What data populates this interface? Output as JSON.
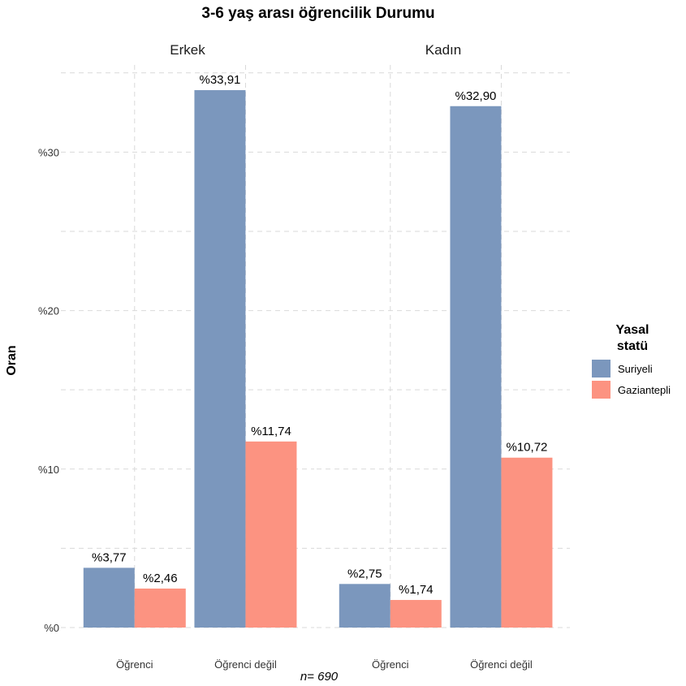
{
  "chart_data": {
    "type": "bar",
    "title": "3-6 yaş arası öğrencilik Durumu",
    "ylabel": "Oran",
    "xlabel": "",
    "ylim": [
      0,
      35.5
    ],
    "yticks": [
      0,
      10,
      20,
      30
    ],
    "ytick_labels": [
      "%0",
      "%10",
      "%20",
      "%30"
    ],
    "grid": true,
    "legend_position": "right",
    "legend_title": [
      "Yasal",
      "statü"
    ],
    "categories": [
      "Öğrenci",
      "Öğrenci değil"
    ],
    "series": [
      {
        "name": "Suriyeli",
        "color": "#7b97bd"
      },
      {
        "name": "Gaziantepli",
        "color": "#fc9381"
      }
    ],
    "facets": [
      {
        "name": "Erkek",
        "values": {
          "Suriyeli": [
            3.77,
            33.91
          ],
          "Gaziantepli": [
            2.46,
            11.74
          ]
        },
        "labels": {
          "Suriyeli": [
            "%3,77",
            "%33,91"
          ],
          "Gaziantepli": [
            "%2,46",
            "%11,74"
          ]
        }
      },
      {
        "name": "Kadın",
        "values": {
          "Suriyeli": [
            2.75,
            32.9
          ],
          "Gaziantepli": [
            1.74,
            10.72
          ]
        },
        "labels": {
          "Suriyeli": [
            "%2,75",
            "%32,90"
          ],
          "Gaziantepli": [
            "%1,74",
            "%10,72"
          ]
        }
      }
    ],
    "caption": "n=  690"
  }
}
